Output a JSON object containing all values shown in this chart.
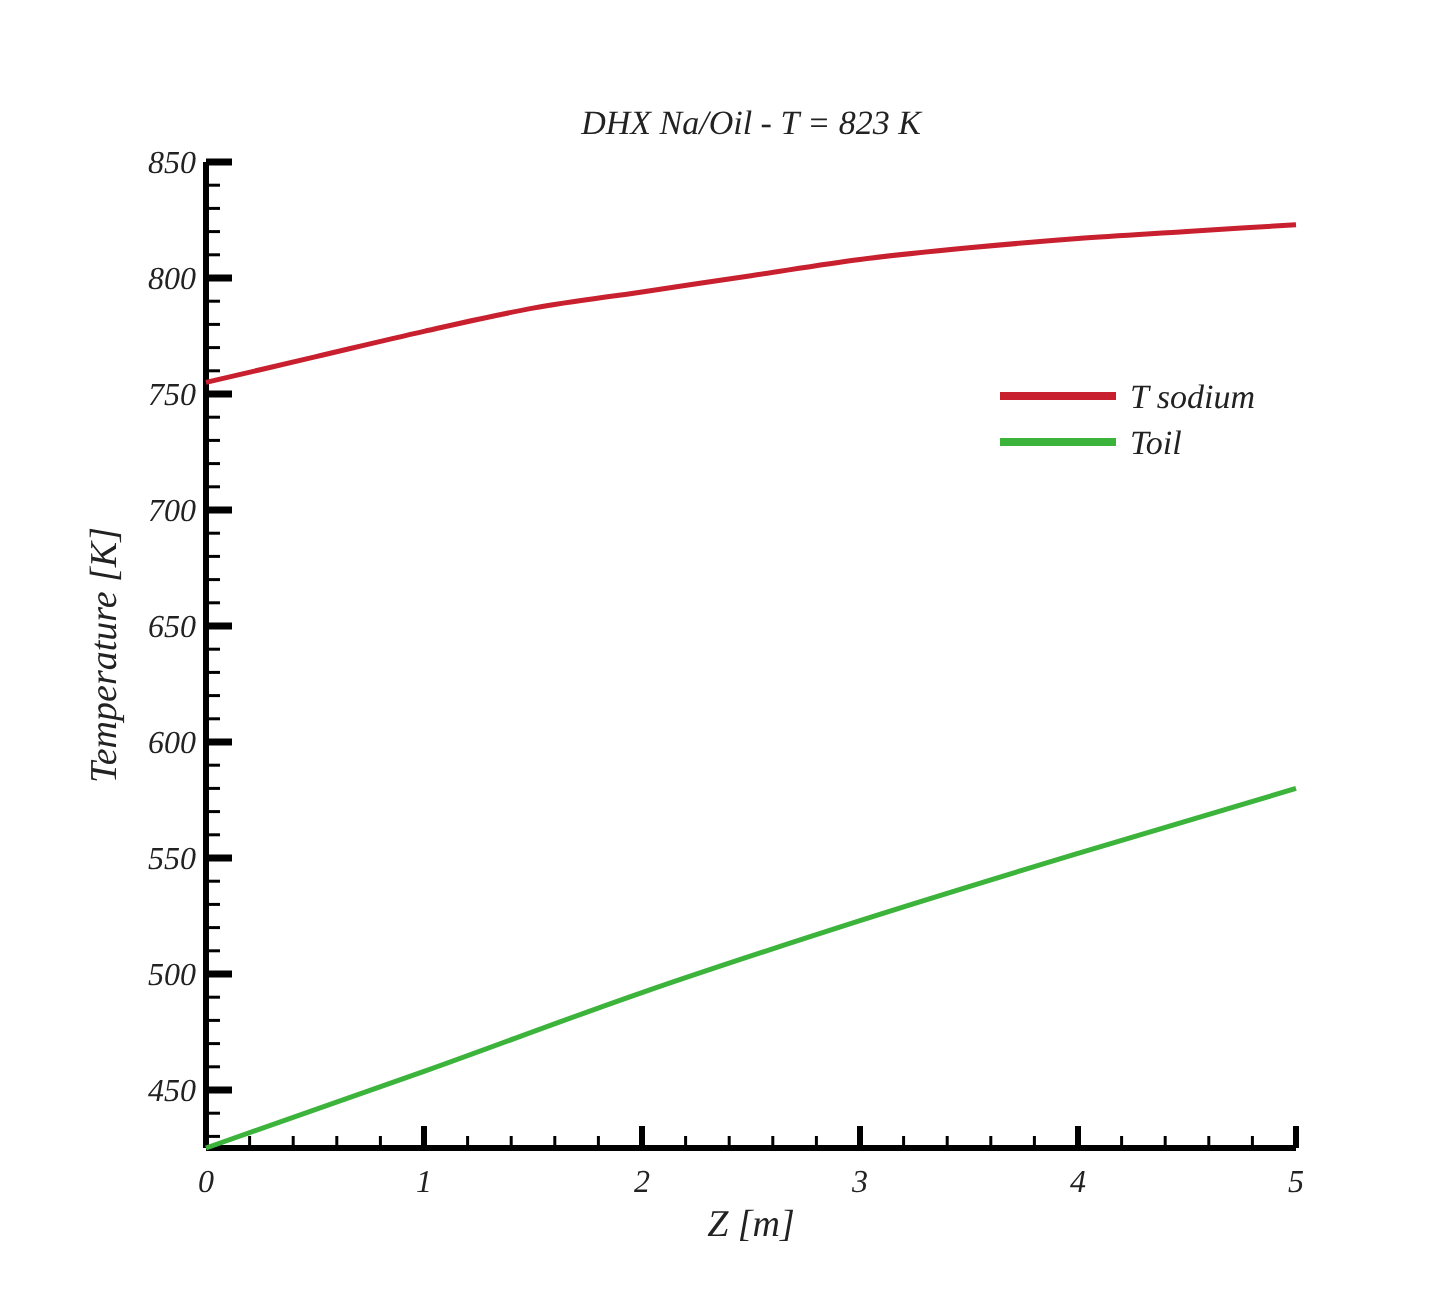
{
  "chart_data": {
    "type": "line",
    "title": "DHX Na/Oil - T = 823 K",
    "xlabel": "Z [m]",
    "ylabel": "Temperature [K]",
    "xlim": [
      0,
      5
    ],
    "ylim": [
      425,
      850
    ],
    "xticks": [
      0,
      {
        "value": 0.2,
        "label": null
      },
      {
        "value": 0.4,
        "label": null
      },
      {
        "value": 0.6,
        "label": null
      },
      {
        "value": 0.8,
        "label": null
      },
      1,
      {
        "value": 1.2,
        "label": null
      },
      {
        "value": 1.4,
        "label": null
      },
      {
        "value": 1.6,
        "label": null
      },
      {
        "value": 1.8,
        "label": null
      },
      2,
      {
        "value": 2.2,
        "label": null
      },
      {
        "value": 2.4,
        "label": null
      },
      {
        "value": 2.6,
        "label": null
      },
      {
        "value": 2.8,
        "label": null
      },
      3,
      {
        "value": 3.2,
        "label": null
      },
      {
        "value": 3.4,
        "label": null
      },
      {
        "value": 3.6,
        "label": null
      },
      {
        "value": 3.8,
        "label": null
      },
      4,
      {
        "value": 4.2,
        "label": null
      },
      {
        "value": 4.4,
        "label": null
      },
      {
        "value": 4.6,
        "label": null
      },
      {
        "value": 4.8,
        "label": null
      },
      5
    ],
    "yticks": [
      {
        "value": 430,
        "label": null
      },
      {
        "value": 440,
        "label": null
      },
      450,
      {
        "value": 460,
        "label": null
      },
      {
        "value": 470,
        "label": null
      },
      {
        "value": 480,
        "label": null
      },
      {
        "value": 490,
        "label": null
      },
      500,
      {
        "value": 510,
        "label": null
      },
      {
        "value": 520,
        "label": null
      },
      {
        "value": 530,
        "label": null
      },
      {
        "value": 540,
        "label": null
      },
      550,
      {
        "value": 560,
        "label": null
      },
      {
        "value": 570,
        "label": null
      },
      {
        "value": 580,
        "label": null
      },
      {
        "value": 590,
        "label": null
      },
      600,
      {
        "value": 610,
        "label": null
      },
      {
        "value": 620,
        "label": null
      },
      {
        "value": 630,
        "label": null
      },
      {
        "value": 640,
        "label": null
      },
      650,
      {
        "value": 660,
        "label": null
      },
      {
        "value": 670,
        "label": null
      },
      {
        "value": 680,
        "label": null
      },
      {
        "value": 690,
        "label": null
      },
      700,
      {
        "value": 710,
        "label": null
      },
      {
        "value": 720,
        "label": null
      },
      {
        "value": 730,
        "label": null
      },
      {
        "value": 740,
        "label": null
      },
      750,
      {
        "value": 760,
        "label": null
      },
      {
        "value": 770,
        "label": null
      },
      {
        "value": 780,
        "label": null
      },
      {
        "value": 790,
        "label": null
      },
      800,
      {
        "value": 810,
        "label": null
      },
      {
        "value": 820,
        "label": null
      },
      {
        "value": 830,
        "label": null
      },
      {
        "value": 840,
        "label": null
      },
      850
    ],
    "grid": false,
    "legend": "top right",
    "marker": "none",
    "line_style": "solid",
    "series": [
      {
        "name": "T sodium",
        "color": "#c8202e",
        "x": [
          0,
          0.5,
          1,
          1.5,
          2,
          2.5,
          3,
          3.5,
          4,
          4.5,
          5
        ],
        "values": [
          755,
          766,
          777,
          787,
          794,
          801,
          808,
          813,
          817,
          820,
          823
        ]
      },
      {
        "name": "Toil",
        "color": "#3cb43c",
        "x": [
          0,
          1,
          2,
          3,
          4,
          5
        ],
        "values": [
          425,
          458,
          492,
          523,
          552,
          580
        ]
      }
    ]
  }
}
